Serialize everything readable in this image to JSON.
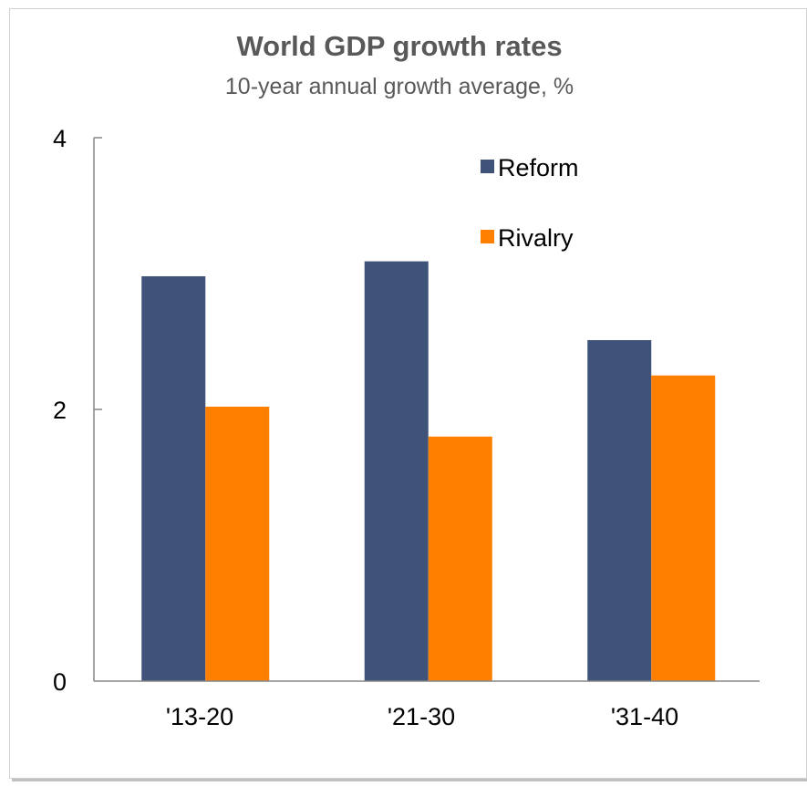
{
  "chart_data": {
    "type": "bar",
    "title": "World GDP growth rates",
    "subtitle": "10-year annual growth average, %",
    "categories": [
      "'13-20",
      "'21-30",
      "'31-40"
    ],
    "series": [
      {
        "name": "Reform",
        "values": [
          2.98,
          3.09,
          2.51
        ],
        "color": "#3f527a"
      },
      {
        "name": "Rivalry",
        "values": [
          2.02,
          1.8,
          2.25
        ],
        "color": "#ff7f00"
      }
    ],
    "y_ticks": [
      "0",
      "2",
      "4"
    ],
    "ylim": [
      0,
      4
    ],
    "xlabel": "",
    "ylabel": "",
    "grid": false,
    "legend_position": "top-right"
  }
}
